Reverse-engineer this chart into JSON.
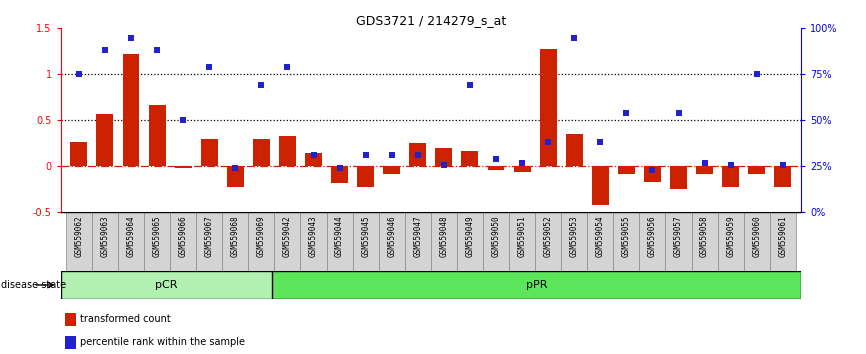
{
  "title": "GDS3721 / 214279_s_at",
  "samples": [
    "GSM559062",
    "GSM559063",
    "GSM559064",
    "GSM559065",
    "GSM559066",
    "GSM559067",
    "GSM559068",
    "GSM559069",
    "GSM559042",
    "GSM559043",
    "GSM559044",
    "GSM559045",
    "GSM559046",
    "GSM559047",
    "GSM559048",
    "GSM559049",
    "GSM559050",
    "GSM559051",
    "GSM559052",
    "GSM559053",
    "GSM559054",
    "GSM559055",
    "GSM559056",
    "GSM559057",
    "GSM559058",
    "GSM559059",
    "GSM559060",
    "GSM559061"
  ],
  "bar_values": [
    0.27,
    0.57,
    1.22,
    0.67,
    -0.02,
    0.3,
    -0.22,
    0.3,
    0.33,
    0.15,
    -0.18,
    -0.22,
    -0.08,
    0.25,
    0.2,
    0.17,
    -0.04,
    -0.06,
    1.28,
    0.35,
    -0.42,
    -0.08,
    -0.17,
    -0.25,
    -0.08,
    -0.22,
    -0.08,
    -0.22
  ],
  "scatter_pct": [
    75,
    88,
    95,
    88,
    50,
    79,
    24,
    69,
    79,
    31,
    24,
    31,
    31,
    31,
    26,
    69,
    29,
    27,
    38,
    95,
    38,
    54,
    23,
    54,
    27,
    26,
    75,
    26
  ],
  "pCR_count": 8,
  "pPR_count": 20,
  "bar_color": "#cc2200",
  "scatter_color": "#2222cc",
  "ylim": [
    -0.5,
    1.5
  ],
  "y2lim": [
    0,
    100
  ],
  "yticks_left": [
    -0.5,
    0.0,
    0.5,
    1.0,
    1.5
  ],
  "yticks_right": [
    0,
    25,
    50,
    75,
    100
  ],
  "dotted_lines": [
    1.0,
    0.5
  ],
  "pCR_color": "#b2f0b2",
  "pPR_color": "#5ce65c",
  "title_fontsize": 9
}
